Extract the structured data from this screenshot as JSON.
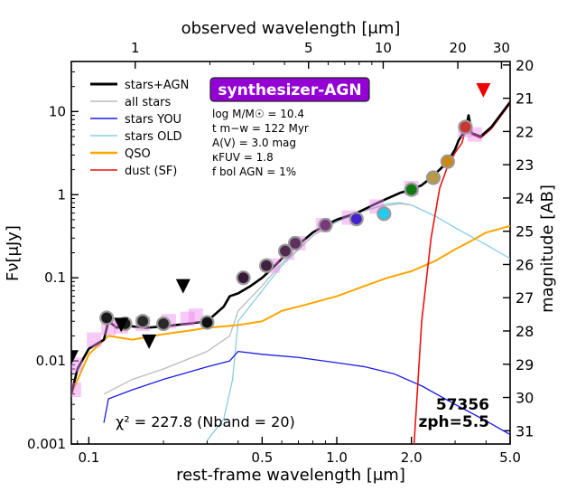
{
  "chart_data": {
    "type": "line",
    "title": "",
    "xlabel": "rest-frame wavelength [μm]",
    "xlabel_top": "observed wavelength [μm]",
    "ylabel": "Fν[μJy]",
    "ylabel_right": "magnitude [AB]",
    "xscale": "log",
    "yscale": "log",
    "xlim": [
      0.085,
      5.0
    ],
    "ylim": [
      0.001,
      40
    ],
    "x_ticks": [
      {
        "v": 0.1,
        "label": "0.1"
      },
      {
        "v": 0.5,
        "label": "0.5"
      },
      {
        "v": 1.0,
        "label": "1.0"
      },
      {
        "v": 2.0,
        "label": "2.0"
      },
      {
        "v": 5.0,
        "label": "5.0"
      }
    ],
    "x_ticks_top": [
      {
        "v": 1,
        "label": "1"
      },
      {
        "v": 5,
        "label": "5"
      },
      {
        "v": 10,
        "label": "10"
      },
      {
        "v": 20,
        "label": "20"
      },
      {
        "v": 30,
        "label": "30"
      }
    ],
    "y_ticks": [
      {
        "v": 0.001,
        "label": "0.001"
      },
      {
        "v": 0.01,
        "label": "0.01"
      },
      {
        "v": 0.1,
        "label": "0.1"
      },
      {
        "v": 1,
        "label": "1"
      },
      {
        "v": 10,
        "label": "10"
      }
    ],
    "mag_ticks": [
      "20",
      "21",
      "22",
      "23",
      "24",
      "25",
      "26",
      "27",
      "28",
      "29",
      "30",
      "31"
    ],
    "redshift": 5.5,
    "legend": [
      {
        "label": "stars+AGN",
        "color": "#000000"
      },
      {
        "label": "all stars",
        "color": "#bbbbbb"
      },
      {
        "label": "stars YOU",
        "color": "#1a1ae6"
      },
      {
        "label": "stars OLD",
        "color": "#87cde8"
      },
      {
        "label": "QSO",
        "color": "#ffa500"
      },
      {
        "label": "dust (SF)",
        "color": "#ee1111"
      }
    ],
    "badge": "synthesizer-AGN",
    "params": [
      {
        "name": "log M/M☉",
        "value": "= 10.4"
      },
      {
        "name": "t m−w",
        "value": "= 122 Myr"
      },
      {
        "name": "A(V)",
        "value": "= 3.0 mag"
      },
      {
        "name": "κFUV",
        "value": "= 1.8"
      },
      {
        "name": "f bol AGN",
        "value": "= 1%"
      }
    ],
    "id_text": "57356",
    "zph_text": "zph=5.5",
    "chi2_text": "χ² = 227.8 (Nband = 20)",
    "series": [
      {
        "name": "stars+AGN",
        "color": "#000000",
        "x": [
          0.085,
          0.09,
          0.1,
          0.115,
          0.12,
          0.13,
          0.14,
          0.15,
          0.17,
          0.2,
          0.25,
          0.3,
          0.35,
          0.37,
          0.4,
          0.45,
          0.5,
          0.55,
          0.6,
          0.65,
          0.7,
          0.8,
          0.9,
          1.0,
          1.1,
          1.2,
          1.4,
          1.6,
          1.8,
          2.0,
          2.2,
          2.4,
          2.6,
          2.8,
          3.0,
          3.1,
          3.3,
          3.4,
          3.5,
          3.8,
          4.2,
          5.0
        ],
        "y": [
          0.004,
          0.008,
          0.014,
          0.018,
          0.03,
          0.025,
          0.028,
          0.026,
          0.025,
          0.026,
          0.028,
          0.03,
          0.045,
          0.06,
          0.065,
          0.08,
          0.1,
          0.13,
          0.17,
          0.22,
          0.25,
          0.35,
          0.43,
          0.5,
          0.55,
          0.6,
          0.75,
          0.9,
          1.05,
          1.15,
          1.3,
          1.6,
          2.0,
          2.5,
          3.5,
          4.5,
          6.0,
          9.0,
          5.5,
          5.0,
          6.5,
          13.0
        ]
      },
      {
        "name": "all stars",
        "color": "#bbbbbb",
        "x": [
          0.115,
          0.15,
          0.2,
          0.3,
          0.37,
          0.4,
          0.5,
          0.6,
          0.7,
          0.8,
          1.0,
          1.2,
          1.5,
          1.8,
          2.0
        ],
        "y": [
          0.004,
          0.006,
          0.008,
          0.013,
          0.02,
          0.04,
          0.08,
          0.15,
          0.22,
          0.32,
          0.48,
          0.6,
          0.72,
          0.78,
          0.75
        ]
      },
      {
        "name": "stars YOU",
        "color": "#1a1ae6",
        "x": [
          0.115,
          0.12,
          0.15,
          0.2,
          0.3,
          0.37,
          0.4,
          0.5,
          0.7,
          1.0,
          1.3,
          1.7,
          2.2,
          3.0,
          4.0,
          5.0
        ],
        "y": [
          0.0018,
          0.0035,
          0.0045,
          0.006,
          0.0085,
          0.01,
          0.013,
          0.012,
          0.011,
          0.0095,
          0.0085,
          0.007,
          0.005,
          0.003,
          0.0019,
          0.0013
        ]
      },
      {
        "name": "stars OLD",
        "color": "#87cde8",
        "x": [
          0.3,
          0.35,
          0.38,
          0.4,
          0.5,
          0.6,
          0.8,
          1.0,
          1.3,
          1.6,
          1.8,
          2.0,
          2.5,
          3.0,
          4.0,
          5.0
        ],
        "y": [
          0.0011,
          0.002,
          0.006,
          0.03,
          0.07,
          0.14,
          0.32,
          0.47,
          0.65,
          0.78,
          0.8,
          0.75,
          0.55,
          0.4,
          0.25,
          0.17
        ]
      },
      {
        "name": "QSO",
        "color": "#ffa500",
        "x": [
          0.085,
          0.1,
          0.12,
          0.15,
          0.2,
          0.25,
          0.3,
          0.4,
          0.5,
          0.6,
          0.7,
          0.8,
          1.0,
          1.3,
          1.6,
          2.0,
          2.5,
          3.0,
          3.5,
          4.0,
          5.0
        ],
        "y": [
          0.004,
          0.012,
          0.02,
          0.018,
          0.021,
          0.023,
          0.025,
          0.027,
          0.03,
          0.04,
          0.045,
          0.05,
          0.06,
          0.08,
          0.1,
          0.12,
          0.16,
          0.22,
          0.28,
          0.35,
          0.42
        ]
      },
      {
        "name": "dust (SF)",
        "color": "#ee1111",
        "x": [
          2.05,
          2.2,
          2.4,
          2.6,
          2.8,
          3.0,
          3.2,
          3.3,
          3.4,
          3.5,
          3.8,
          4.2,
          5.0
        ],
        "y": [
          0.001,
          0.03,
          0.3,
          1.2,
          2.2,
          3.2,
          4.2,
          6.0,
          9.0,
          5.3,
          4.8,
          6.2,
          12.5
        ]
      }
    ],
    "photometry": [
      {
        "x": 0.118,
        "y": 0.033,
        "fill": "#1a1a1a"
      },
      {
        "x": 0.14,
        "y": 0.028,
        "fill": "#1a1a1a"
      },
      {
        "x": 0.165,
        "y": 0.03,
        "fill": "#2a2a2a"
      },
      {
        "x": 0.2,
        "y": 0.028,
        "fill": "#2a2a2a"
      },
      {
        "x": 0.3,
        "y": 0.029,
        "fill": "#111111"
      },
      {
        "x": 0.42,
        "y": 0.1,
        "fill": "#3a1a3a"
      },
      {
        "x": 0.52,
        "y": 0.14,
        "fill": "#402040"
      },
      {
        "x": 0.62,
        "y": 0.21,
        "fill": "#502a50"
      },
      {
        "x": 0.68,
        "y": 0.26,
        "fill": "#603060"
      },
      {
        "x": 0.9,
        "y": 0.43,
        "fill": "#7a3a7a"
      },
      {
        "x": 1.2,
        "y": 0.51,
        "fill": "#4422cc"
      },
      {
        "x": 1.55,
        "y": 0.59,
        "fill": "#22ccee"
      },
      {
        "x": 2.0,
        "y": 1.15,
        "fill": "#117711"
      },
      {
        "x": 2.45,
        "y": 1.6,
        "fill": "#bb9944"
      },
      {
        "x": 2.8,
        "y": 2.5,
        "fill": "#cc8811"
      },
      {
        "x": 3.3,
        "y": 6.5,
        "fill": "#cc3333"
      }
    ],
    "model_squares": [
      {
        "x": 0.087,
        "y": 0.0045
      },
      {
        "x": 0.088,
        "y": 0.009
      },
      {
        "x": 0.105,
        "y": 0.018
      },
      {
        "x": 0.12,
        "y": 0.025
      },
      {
        "x": 0.135,
        "y": 0.026
      },
      {
        "x": 0.165,
        "y": 0.028
      },
      {
        "x": 0.21,
        "y": 0.03
      },
      {
        "x": 0.25,
        "y": 0.032
      },
      {
        "x": 0.27,
        "y": 0.035
      },
      {
        "x": 0.55,
        "y": 0.14
      },
      {
        "x": 0.63,
        "y": 0.2
      },
      {
        "x": 0.7,
        "y": 0.26
      },
      {
        "x": 0.88,
        "y": 0.43
      },
      {
        "x": 1.12,
        "y": 0.53
      },
      {
        "x": 1.45,
        "y": 0.72
      },
      {
        "x": 2.0,
        "y": 1.2
      },
      {
        "x": 3.3,
        "y": 6.0
      },
      {
        "x": 3.6,
        "y": 5.3
      }
    ],
    "upper_limits": [
      {
        "x": 0.085,
        "y": 0.011,
        "color": "#000000"
      },
      {
        "x": 0.135,
        "y": 0.027,
        "color": "#000000"
      },
      {
        "x": 0.175,
        "y": 0.017,
        "color": "#000000"
      },
      {
        "x": 0.24,
        "y": 0.079,
        "color": "#000000"
      },
      {
        "x": 3.9,
        "y": 18.0,
        "color": "#ee0000"
      }
    ]
  }
}
